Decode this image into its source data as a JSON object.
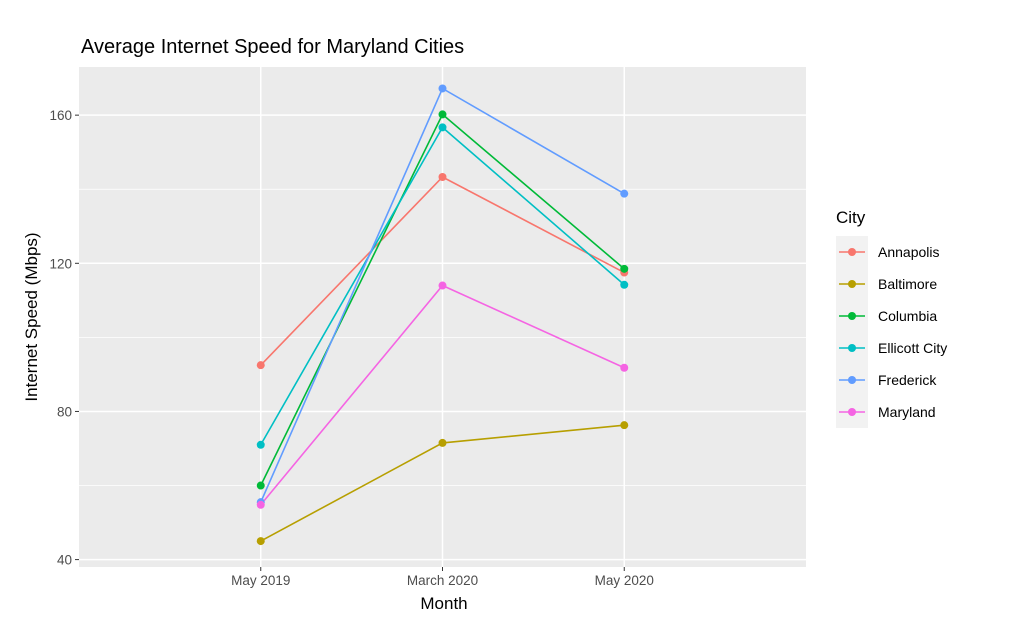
{
  "chart_data": {
    "type": "line",
    "title": "Average Internet Speed for Maryland Cities",
    "xlabel": "Month",
    "ylabel": "Internet Speed (Mbps)",
    "categories": [
      "May 2019",
      "March 2020",
      "May 2020"
    ],
    "ylim": [
      38,
      173
    ],
    "yticks": [
      40,
      80,
      120,
      160
    ],
    "grid": true,
    "legend": {
      "title": "City",
      "position": "right"
    },
    "series": [
      {
        "name": "Annapolis",
        "color": "#F8766D",
        "values": [
          92.5,
          143.3,
          117.5
        ]
      },
      {
        "name": "Baltimore",
        "color": "#B79F00",
        "values": [
          45.0,
          71.5,
          76.3
        ]
      },
      {
        "name": "Columbia",
        "color": "#00BA38",
        "values": [
          60.0,
          160.2,
          118.5
        ]
      },
      {
        "name": "Ellicott City",
        "color": "#00BFC4",
        "values": [
          71.0,
          156.7,
          114.2
        ]
      },
      {
        "name": "Frederick",
        "color": "#619CFF",
        "values": [
          55.5,
          167.2,
          138.8
        ]
      },
      {
        "name": "Maryland",
        "color": "#F564E3",
        "values": [
          54.8,
          114.0,
          91.8
        ]
      }
    ]
  }
}
